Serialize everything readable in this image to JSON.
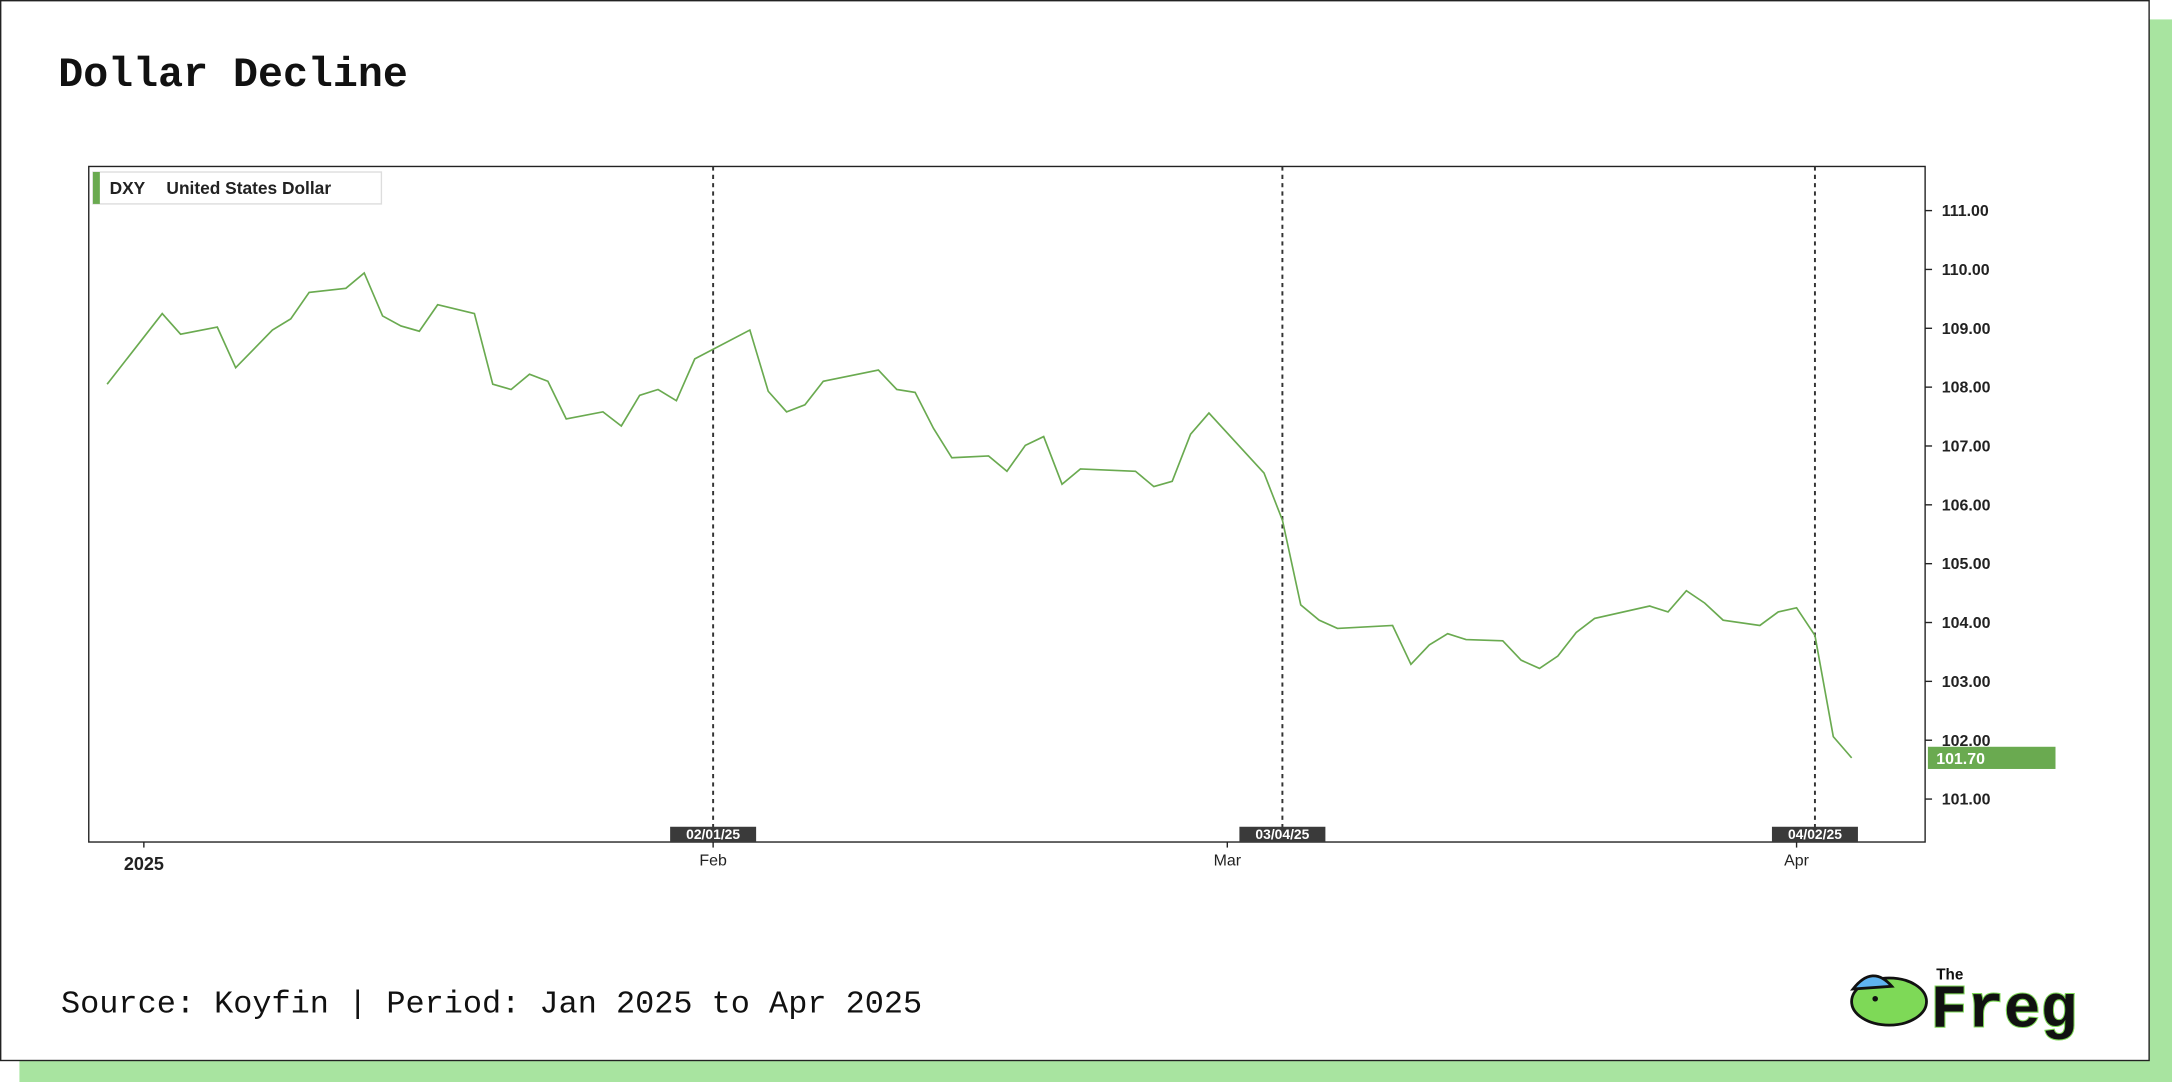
{
  "chart_data": {
    "type": "line",
    "title": "Dollar Decline",
    "source": "Source: Koyfin | Period: Jan 2025 to Apr 2025",
    "x": [
      "12/30/24",
      "01/02/25",
      "01/03/25",
      "01/05/25",
      "01/06/25",
      "01/08/25",
      "01/09/25",
      "01/10/25",
      "01/12/25",
      "01/13/25",
      "01/14/25",
      "01/15/25",
      "01/16/25",
      "01/17/25",
      "01/19/25",
      "01/20/25",
      "01/21/25",
      "01/22/25",
      "01/23/25",
      "01/24/25",
      "01/26/25",
      "01/27/25",
      "01/28/25",
      "01/29/25",
      "01/30/25",
      "01/31/25",
      "02/03/25",
      "02/04/25",
      "02/05/25",
      "02/06/25",
      "02/07/25",
      "02/10/25",
      "02/11/25",
      "02/12/25",
      "02/13/25",
      "02/14/25",
      "02/16/25",
      "02/17/25",
      "02/18/25",
      "02/19/25",
      "02/20/25",
      "02/21/25",
      "02/24/25",
      "02/25/25",
      "02/26/25",
      "02/27/25",
      "02/28/25",
      "03/03/25",
      "03/04/25",
      "03/05/25",
      "03/06/25",
      "03/07/25",
      "03/10/25",
      "03/11/25",
      "03/12/25",
      "03/13/25",
      "03/14/25",
      "03/16/25",
      "03/17/25",
      "03/18/25",
      "03/19/25",
      "03/20/25",
      "03/21/25",
      "03/24/25",
      "03/25/25",
      "03/26/25",
      "03/27/25",
      "03/28/25",
      "03/30/25",
      "03/31/25",
      "04/01/25",
      "04/02/25",
      "04/03/25",
      "04/04/25"
    ],
    "series": [
      {
        "name": "United States Dollar",
        "ticker": "DXY",
        "color": "#6aaa50",
        "values": [
          108.05,
          109.25,
          108.9,
          109.02,
          108.33,
          108.97,
          109.16,
          109.61,
          109.68,
          109.94,
          109.21,
          109.04,
          108.95,
          109.4,
          109.25,
          108.05,
          107.96,
          108.22,
          108.1,
          107.46,
          107.58,
          107.34,
          107.86,
          107.96,
          107.77,
          108.48,
          108.97,
          107.93,
          107.58,
          107.7,
          108.1,
          108.29,
          107.96,
          107.91,
          107.3,
          106.8,
          106.83,
          106.57,
          107.01,
          107.16,
          106.35,
          106.61,
          106.57,
          106.31,
          106.4,
          107.2,
          107.56,
          106.54,
          105.74,
          104.3,
          104.04,
          103.9,
          103.95,
          103.29,
          103.62,
          103.81,
          103.71,
          103.69,
          103.36,
          103.22,
          103.43,
          103.83,
          104.07,
          104.28,
          104.18,
          104.54,
          104.33,
          104.04,
          103.95,
          104.18,
          104.25,
          103.78,
          102.06,
          101.7
        ]
      }
    ],
    "xlim": [
      "12/29/24",
      "04/08/25"
    ],
    "xticks": [
      {
        "value": "01/01/25",
        "label": "2025"
      },
      {
        "value": "02/01/25",
        "label": "Feb"
      },
      {
        "value": "03/01/25",
        "label": "Mar"
      },
      {
        "value": "04/01/25",
        "label": "Apr"
      }
    ],
    "markers": [
      "02/01/25",
      "03/04/25",
      "04/02/25"
    ],
    "ylim": [
      100.27,
      111.75
    ],
    "yticks": [
      {
        "value": 101,
        "label": "101.00"
      },
      {
        "value": 102,
        "label": "102.00"
      },
      {
        "value": 103,
        "label": "103.00"
      },
      {
        "value": 104,
        "label": "104.00"
      },
      {
        "value": 105,
        "label": "105.00"
      },
      {
        "value": 106,
        "label": "106.00"
      },
      {
        "value": 107,
        "label": "107.00"
      },
      {
        "value": 108,
        "label": "108.00"
      },
      {
        "value": 109,
        "label": "109.00"
      },
      {
        "value": 110,
        "label": "110.00"
      },
      {
        "value": 111,
        "label": "111.00"
      }
    ],
    "last_value": {
      "value": 101.7,
      "label": "101.70"
    }
  },
  "logo": {
    "small": "The",
    "big": "Freg"
  }
}
